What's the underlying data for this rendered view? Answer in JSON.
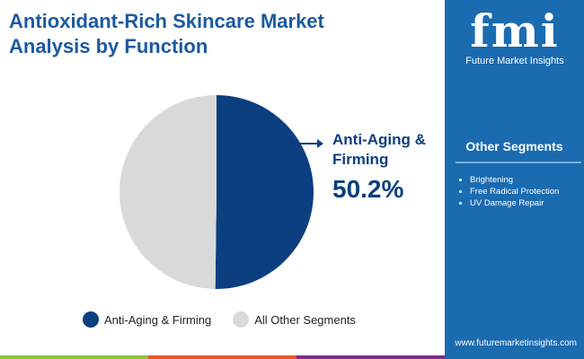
{
  "title": "Antioxidant-Rich Skincare Market Analysis by Function",
  "logo": {
    "mark": "fmi",
    "name": "Future Market Insights"
  },
  "other_segments": {
    "title": "Other Segments",
    "items": [
      "Brightening",
      "Free Radical Protection",
      "UV Damage Repair"
    ]
  },
  "url": "www.futuremarketinsights.com",
  "callout": {
    "label": "Anti-Aging & Firming",
    "value": "50.2%"
  },
  "colors": {
    "primary": "#0c3f80",
    "other": "#d9d9d9",
    "panel": "#1a6bb0"
  },
  "chart_data": {
    "type": "pie",
    "title": "Antioxidant-Rich Skincare Market Analysis by Function",
    "series": [
      {
        "name": "Anti-Aging & Firming",
        "value": 50.2,
        "color": "#0c3f80"
      },
      {
        "name": "All Other Segments",
        "value": 49.8,
        "color": "#d9d9d9"
      }
    ],
    "legend": "bottom"
  }
}
